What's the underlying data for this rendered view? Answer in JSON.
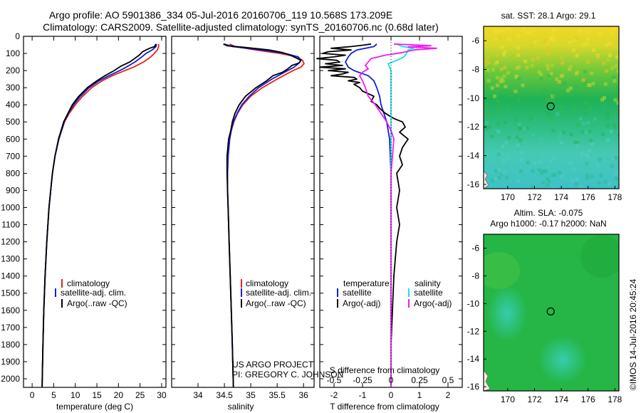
{
  "header": {
    "line1": "Argo profile: AO 5901386_334 05-Jul-2016 20160706_119 10.568S 173.209E",
    "line2": "Climatology: CARS2009. Satellite-adjusted climatology: synTS_20160706.nc (0.68d later)"
  },
  "colors": {
    "clim": "#e8201a",
    "sat": "#1020d8",
    "argo": "#000000",
    "sat_s": "#19e0e8",
    "argo_s": "#f01cf0",
    "axis": "#000000"
  },
  "depth_ticks": [
    "0",
    "100",
    "200",
    "300",
    "400",
    "500",
    "600",
    "700",
    "800",
    "900",
    "1000",
    "1100",
    "1200",
    "1300",
    "1400",
    "1500",
    "1600",
    "1700",
    "1800",
    "1900",
    "2000"
  ],
  "chart_data": [
    {
      "type": "line",
      "name": "temperature-profile",
      "xlabel": "temperature (deg C)",
      "xlim": [
        -2,
        31
      ],
      "ylim": [
        0,
        2050
      ],
      "xticks": [
        "0",
        "5",
        "10",
        "15",
        "20",
        "25",
        "30"
      ],
      "legend": [
        "climatology",
        "satellite-adj. clim.",
        "Argo(..raw -QC)"
      ],
      "series": [
        {
          "name": "climatology",
          "depth": [
            45,
            60,
            80,
            100,
            120,
            150,
            180,
            200,
            230,
            260,
            300,
            350,
            400,
            450,
            500,
            600,
            700,
            800,
            900,
            1000,
            1200,
            1400,
            1600,
            1800,
            2050
          ],
          "values": [
            29.3,
            29.3,
            29,
            28.3,
            27.5,
            25.8,
            23.5,
            21.5,
            18.6,
            16.2,
            13.8,
            11.7,
            10,
            8.6,
            7.5,
            6.2,
            5.3,
            4.7,
            4.3,
            3.9,
            3.4,
            3.0,
            2.7,
            2.5,
            2.3
          ]
        },
        {
          "name": "satellite-adj. clim.",
          "depth": [
            45,
            60,
            80,
            100,
            120,
            150,
            180,
            200,
            230,
            260,
            300,
            350,
            400,
            450,
            500,
            600,
            700,
            800,
            900,
            1000,
            1200,
            1400,
            1600,
            1800,
            2050
          ],
          "values": [
            28.8,
            28.7,
            27.8,
            26.4,
            25.4,
            23.8,
            21.8,
            20.3,
            17.8,
            15.5,
            13.2,
            11.2,
            9.6,
            8.4,
            7.4,
            6.2,
            5.3,
            4.7,
            4.3,
            3.9,
            3.4,
            3.0,
            2.7,
            2.5,
            2.3
          ]
        },
        {
          "name": "Argo(..raw -QC)",
          "depth": [
            45,
            60,
            70,
            90,
            110,
            130,
            150,
            175,
            200,
            230,
            260,
            300,
            350,
            400,
            450,
            500,
            600,
            700,
            800,
            900,
            1000,
            1200,
            1400,
            1600,
            1800,
            2050
          ],
          "values": [
            28.6,
            28.4,
            27.2,
            25.6,
            24.8,
            23.7,
            22.6,
            20.5,
            19,
            16.9,
            15,
            12.8,
            10.8,
            9.3,
            8.3,
            7.3,
            6.1,
            5.3,
            4.7,
            4.3,
            3.9,
            3.4,
            3.0,
            2.7,
            2.5,
            2.3
          ]
        }
      ]
    },
    {
      "type": "line",
      "name": "salinity-profile",
      "xlabel": "salinity",
      "xlim": [
        33.5,
        36.2
      ],
      "ylim": [
        0,
        2050
      ],
      "xticks": [
        "34",
        "34.5",
        "35",
        "35.5",
        "36"
      ],
      "legend": [
        "climatology",
        "satellite-adj. clim.",
        "Argo(..raw -QC)"
      ],
      "series": [
        {
          "name": "climatology",
          "depth": [
            45,
            60,
            80,
            100,
            120,
            140,
            160,
            180,
            200,
            250,
            300,
            350,
            400,
            450,
            500,
            550,
            600,
            700,
            800,
            900,
            1000,
            1200,
            1500,
            1800,
            2050
          ],
          "values": [
            34.6,
            34.7,
            35.1,
            35.55,
            35.88,
            35.98,
            36.01,
            35.95,
            35.8,
            35.5,
            35.22,
            35.0,
            34.85,
            34.75,
            34.68,
            34.63,
            34.6,
            34.57,
            34.56,
            34.56,
            34.57,
            34.59,
            34.62,
            34.65,
            34.67
          ]
        },
        {
          "name": "satellite-adj. clim.",
          "depth": [
            45,
            60,
            80,
            100,
            120,
            140,
            160,
            180,
            200,
            250,
            300,
            350,
            400,
            450,
            500,
            550,
            600,
            700,
            800,
            900,
            1000,
            1200,
            1500,
            1800,
            2050
          ],
          "values": [
            34.5,
            34.65,
            35.2,
            35.65,
            35.9,
            35.95,
            35.9,
            35.82,
            35.7,
            35.4,
            35.15,
            34.97,
            34.83,
            34.74,
            34.67,
            34.63,
            34.6,
            34.57,
            34.56,
            34.56,
            34.57,
            34.59,
            34.62,
            34.65,
            34.67
          ]
        },
        {
          "name": "Argo(..raw -QC)",
          "depth": [
            45,
            55,
            65,
            80,
            95,
            110,
            125,
            140,
            155,
            170,
            190,
            210,
            230,
            260,
            300,
            350,
            400,
            450,
            500,
            550,
            600,
            700,
            800,
            900,
            1000,
            1200,
            1500,
            1800,
            2050
          ],
          "values": [
            34.48,
            34.55,
            34.9,
            35.35,
            35.6,
            35.75,
            35.85,
            35.95,
            35.92,
            35.78,
            35.7,
            35.6,
            35.42,
            35.3,
            35.1,
            34.9,
            34.78,
            34.7,
            34.65,
            34.62,
            34.58,
            34.55,
            34.55,
            34.56,
            34.57,
            34.59,
            34.62,
            34.65,
            34.67
          ]
        }
      ]
    },
    {
      "type": "line",
      "name": "difference-profile",
      "xlabel": "T difference from climatology",
      "xlabel_top": "S difference from climatology",
      "xlim": [
        -2.5,
        2.5
      ],
      "ylim": [
        0,
        2050
      ],
      "xticks": [
        "-2",
        "-1",
        "0",
        "1",
        "2"
      ],
      "sticks": [
        "-0.5",
        "-0.25",
        "0",
        "0.25",
        "0.5"
      ],
      "legend_title_t": "temperature",
      "legend_title_s": "salinity",
      "legend_t": [
        "satellite",
        "Argo(-adj)"
      ],
      "legend_s": [
        "satellite",
        "Argo(-adj)"
      ],
      "series": [
        {
          "name": "T satellite",
          "depth": [
            45,
            60,
            80,
            100,
            120,
            150,
            180,
            200,
            230,
            260,
            300,
            350,
            400,
            500,
            600,
            800,
            1000,
            1500,
            2050
          ],
          "values": [
            -0.5,
            -0.6,
            -1.2,
            -1.4,
            -1.5,
            -1.6,
            -1.5,
            -1.3,
            -0.8,
            -0.6,
            -0.5,
            -0.4,
            -0.35,
            -0.15,
            -0.05,
            0,
            0,
            0,
            0
          ]
        },
        {
          "name": "T Argo(-adj)",
          "depth": [
            45,
            50,
            60,
            70,
            80,
            90,
            100,
            110,
            120,
            130,
            140,
            150,
            160,
            170,
            180,
            190,
            200,
            210,
            220,
            230,
            240,
            250,
            260,
            270,
            280,
            300,
            320,
            350,
            380,
            400,
            420,
            450,
            480,
            500,
            530,
            560,
            600,
            650,
            700,
            750,
            800,
            900,
            1000,
            1100,
            1200,
            1400,
            1600,
            1800,
            2050
          ],
          "values": [
            -0.7,
            -0.9,
            -1.4,
            -2.1,
            -1.4,
            -2.2,
            -2.4,
            -1.6,
            -2.0,
            -2.6,
            -1.9,
            -1.8,
            -2.3,
            -1.7,
            -2.5,
            -1.6,
            -2.2,
            -1.5,
            -1.7,
            -2.1,
            -1.3,
            -1.2,
            -1.5,
            -1.1,
            -1.3,
            -1.1,
            -1.0,
            -0.6,
            -0.7,
            -0.5,
            -0.4,
            -0.2,
            0.1,
            0.4,
            0.5,
            0.3,
            0.6,
            0.4,
            0.3,
            0.4,
            0.2,
            0.3,
            0.2,
            0.3,
            0.2,
            0.1,
            0.05,
            0,
            0
          ]
        },
        {
          "name": "S satellite",
          "depth": [
            45,
            60,
            70,
            80,
            100,
            120,
            140,
            160,
            180,
            200,
            250,
            300,
            400,
            500,
            600,
            800,
            1000,
            1500,
            2050
          ],
          "values": [
            0.2,
            0.4,
            0.8,
            0.6,
            0.55,
            0.45,
            0.2,
            -0.1,
            -0.05,
            0,
            0,
            0,
            0,
            0,
            0,
            0,
            0,
            0,
            0
          ]
        },
        {
          "name": "S Argo(-adj)",
          "depth": [
            45,
            55,
            62,
            70,
            80,
            95,
            110,
            130,
            150,
            170,
            190,
            210,
            230,
            260,
            300,
            350,
            400,
            450,
            500,
            550,
            600,
            700,
            800,
            1000,
            1500,
            2050
          ],
          "values": [
            0.1,
            1.4,
            0.6,
            1.6,
            0.8,
            0.4,
            -0.2,
            -0.7,
            -0.8,
            -0.9,
            -0.8,
            -1.0,
            -1.1,
            -1.0,
            -0.9,
            -0.8,
            -0.55,
            -0.35,
            -0.15,
            0,
            0.1,
            0.05,
            0,
            0,
            0,
            0
          ]
        }
      ]
    }
  ],
  "footer_text": {
    "project": "US ARGO PROJECT",
    "pi": "PI: GREGORY C. JOHNSON"
  },
  "maps": {
    "sst": {
      "title": "sat. SST: 28.1 Argo: 29.1"
    },
    "sla": {
      "title1": "Altim. SLA: -0.075",
      "title2": "Argo h1000: -0.17 h2000: NaN"
    },
    "yticks": [
      "-6",
      "-8",
      "-10",
      "-12",
      "-14",
      "-16"
    ],
    "xticks": [
      "170",
      "172",
      "174",
      "176",
      "178"
    ],
    "marker": {
      "lon": 173.209,
      "lat": -10.568
    }
  },
  "stamp": "©IMOS 14-Jul-2016 20:45:24"
}
